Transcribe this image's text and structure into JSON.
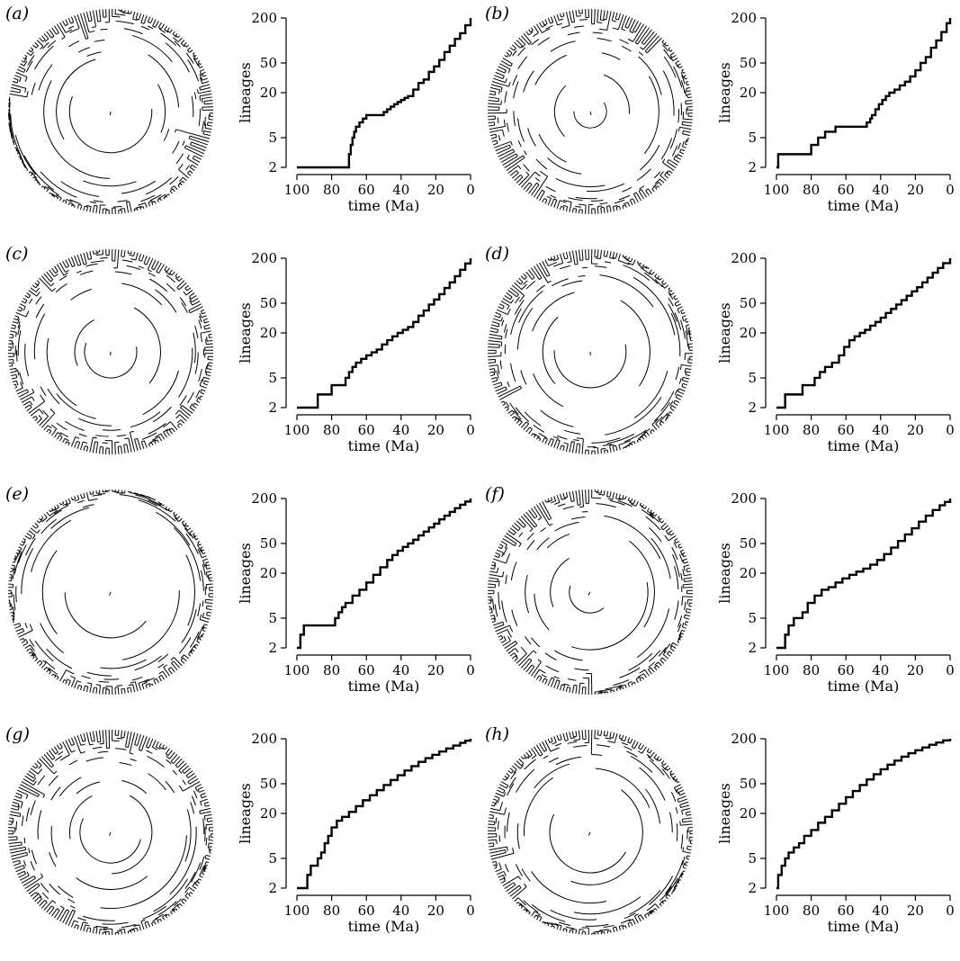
{
  "chart_data": [
    {
      "panel": "(a)",
      "type": "line",
      "xlabel": "time (Ma)",
      "ylabel": "lineages",
      "xlim": [
        100,
        0
      ],
      "ylim": [
        2,
        200
      ],
      "yscale": "log",
      "xticks": [
        100,
        80,
        60,
        40,
        20,
        0
      ],
      "yticks": [
        2,
        5,
        20,
        50,
        200
      ],
      "step": true,
      "x": [
        100,
        70,
        69,
        68,
        67,
        66,
        64,
        62,
        60,
        56,
        52,
        50,
        48,
        46,
        44,
        42,
        40,
        38,
        36,
        33,
        30,
        27,
        24,
        21,
        18,
        15,
        12,
        9,
        6,
        3,
        0
      ],
      "y": [
        2,
        3,
        4,
        5,
        6,
        7,
        8,
        9,
        10,
        10,
        10,
        11,
        12,
        13,
        14,
        15,
        16,
        17,
        18,
        22,
        27,
        30,
        38,
        45,
        55,
        70,
        85,
        105,
        125,
        160,
        200
      ]
    },
    {
      "panel": "(b)",
      "type": "line",
      "xlabel": "time (Ma)",
      "ylabel": "lineages",
      "xlim": [
        100,
        0
      ],
      "ylim": [
        2,
        200
      ],
      "yscale": "log",
      "xticks": [
        100,
        80,
        60,
        40,
        20,
        0
      ],
      "yticks": [
        2,
        5,
        20,
        50,
        200
      ],
      "step": true,
      "x": [
        100,
        99,
        88,
        80,
        76,
        72,
        66,
        50,
        48,
        46,
        45,
        43,
        41,
        39,
        37,
        35,
        32,
        29,
        26,
        23,
        20,
        17,
        14,
        11,
        8,
        5,
        2,
        0
      ],
      "y": [
        2,
        3,
        3,
        4,
        5,
        6,
        7,
        7,
        8,
        9,
        10,
        12,
        14,
        16,
        18,
        20,
        22,
        25,
        28,
        33,
        40,
        50,
        60,
        80,
        100,
        130,
        170,
        200
      ]
    },
    {
      "panel": "(c)",
      "type": "line",
      "xlabel": "time (Ma)",
      "ylabel": "lineages",
      "xlim": [
        100,
        0
      ],
      "ylim": [
        2,
        200
      ],
      "yscale": "log",
      "xticks": [
        100,
        80,
        60,
        40,
        20,
        0
      ],
      "yticks": [
        2,
        5,
        20,
        50,
        200
      ],
      "step": true,
      "x": [
        100,
        88,
        80,
        72,
        70,
        68,
        66,
        63,
        60,
        57,
        54,
        51,
        48,
        45,
        42,
        39,
        36,
        33,
        30,
        27,
        24,
        21,
        18,
        15,
        12,
        9,
        6,
        3,
        0
      ],
      "y": [
        2,
        3,
        4,
        5,
        6,
        7,
        8,
        9,
        10,
        11,
        12,
        14,
        16,
        18,
        20,
        22,
        24,
        28,
        34,
        40,
        48,
        56,
        66,
        80,
        95,
        115,
        140,
        170,
        200
      ]
    },
    {
      "panel": "(d)",
      "type": "line",
      "xlabel": "time (Ma)",
      "ylabel": "lineages",
      "xlim": [
        100,
        0
      ],
      "ylim": [
        2,
        200
      ],
      "yscale": "log",
      "xticks": [
        100,
        80,
        60,
        40,
        20,
        0
      ],
      "yticks": [
        2,
        5,
        20,
        50,
        200
      ],
      "step": true,
      "x": [
        100,
        95,
        90,
        85,
        80,
        78,
        75,
        72,
        68,
        64,
        61,
        58,
        55,
        52,
        49,
        46,
        43,
        40,
        37,
        34,
        31,
        28,
        25,
        22,
        19,
        16,
        13,
        10,
        7,
        4,
        0
      ],
      "y": [
        2,
        3,
        3,
        4,
        4,
        5,
        6,
        7,
        8,
        10,
        13,
        16,
        18,
        20,
        22,
        25,
        28,
        32,
        37,
        42,
        48,
        55,
        63,
        72,
        82,
        95,
        110,
        128,
        148,
        172,
        200
      ]
    },
    {
      "panel": "(e)",
      "type": "line",
      "xlabel": "time (Ma)",
      "ylabel": "lineages",
      "xlim": [
        100,
        0
      ],
      "ylim": [
        2,
        200
      ],
      "yscale": "log",
      "xticks": [
        100,
        80,
        60,
        40,
        20,
        0
      ],
      "yticks": [
        2,
        5,
        20,
        50,
        200
      ],
      "step": true,
      "x": [
        100,
        98,
        96,
        80,
        78,
        76,
        74,
        72,
        68,
        64,
        60,
        56,
        52,
        48,
        45,
        42,
        39,
        36,
        33,
        30,
        27,
        24,
        21,
        18,
        15,
        12,
        9,
        6,
        3,
        0
      ],
      "y": [
        2,
        3,
        4,
        4,
        5,
        6,
        7,
        8,
        10,
        12,
        15,
        19,
        24,
        30,
        35,
        40,
        45,
        50,
        56,
        64,
        72,
        82,
        92,
        105,
        118,
        132,
        148,
        165,
        182,
        200
      ]
    },
    {
      "panel": "(f)",
      "type": "line",
      "xlabel": "time (Ma)",
      "ylabel": "lineages",
      "xlim": [
        100,
        0
      ],
      "ylim": [
        2,
        200
      ],
      "yscale": "log",
      "xticks": [
        100,
        80,
        60,
        40,
        20,
        0
      ],
      "yticks": [
        2,
        5,
        20,
        50,
        200
      ],
      "step": true,
      "x": [
        100,
        95,
        93,
        90,
        85,
        82,
        78,
        74,
        70,
        66,
        62,
        58,
        54,
        50,
        46,
        42,
        38,
        34,
        30,
        26,
        22,
        18,
        14,
        10,
        6,
        3,
        0
      ],
      "y": [
        2,
        3,
        4,
        5,
        6,
        8,
        10,
        12,
        13,
        15,
        17,
        19,
        21,
        23,
        26,
        30,
        36,
        44,
        54,
        66,
        80,
        98,
        118,
        140,
        162,
        180,
        200
      ]
    },
    {
      "panel": "(g)",
      "type": "line",
      "xlabel": "time (Ma)",
      "ylabel": "lineages",
      "xlim": [
        100,
        0
      ],
      "ylim": [
        2,
        200
      ],
      "yscale": "log",
      "xticks": [
        100,
        80,
        60,
        40,
        20,
        0
      ],
      "yticks": [
        2,
        5,
        20,
        50,
        200
      ],
      "step": true,
      "x": [
        100,
        94,
        92,
        88,
        86,
        84,
        82,
        80,
        77,
        74,
        70,
        66,
        62,
        58,
        54,
        50,
        46,
        42,
        38,
        34,
        30,
        26,
        22,
        18,
        14,
        10,
        6,
        3,
        0
      ],
      "y": [
        2,
        3,
        4,
        5,
        6,
        8,
        10,
        13,
        16,
        18,
        21,
        25,
        30,
        35,
        41,
        48,
        56,
        65,
        75,
        86,
        98,
        110,
        122,
        135,
        148,
        162,
        176,
        188,
        200
      ]
    },
    {
      "panel": "(h)",
      "type": "line",
      "xlabel": "time (Ma)",
      "ylabel": "lineages",
      "xlim": [
        100,
        0
      ],
      "ylim": [
        2,
        200
      ],
      "yscale": "log",
      "xticks": [
        100,
        80,
        60,
        40,
        20,
        0
      ],
      "yticks": [
        2,
        5,
        20,
        50,
        200
      ],
      "step": true,
      "x": [
        100,
        99,
        97,
        95,
        93,
        90,
        87,
        84,
        80,
        76,
        72,
        68,
        64,
        60,
        56,
        52,
        48,
        44,
        40,
        36,
        32,
        28,
        24,
        20,
        16,
        12,
        8,
        4,
        0
      ],
      "y": [
        2,
        3,
        4,
        5,
        6,
        7,
        8,
        10,
        12,
        15,
        18,
        22,
        27,
        33,
        40,
        48,
        57,
        67,
        78,
        90,
        102,
        115,
        128,
        140,
        153,
        166,
        178,
        190,
        200
      ]
    }
  ]
}
